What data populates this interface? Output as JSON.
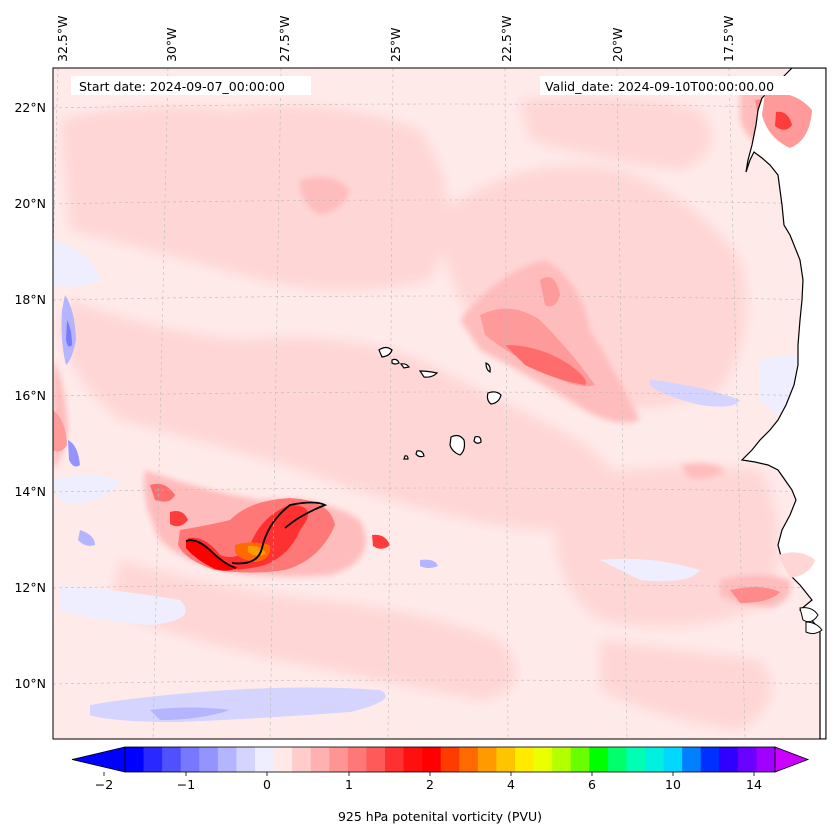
{
  "header": {
    "start_date": "Start date: 2024-09-07_00:00:00",
    "valid_date": "Valid_date: 2024-09-10T00:00:00.00"
  },
  "lon_ticks": [
    "32.5°W",
    "30°W",
    "27.5°W",
    "25°W",
    "22.5°W",
    "20°W",
    "17.5°W"
  ],
  "lat_ticks": [
    "22°N",
    "20°N",
    "18°N",
    "16°N",
    "14°N",
    "12°N",
    "10°N"
  ],
  "colorbar": {
    "label": "925 hPa potenital vorticity (PVU)",
    "tick_labels": [
      "−2",
      "−1",
      "0",
      "1",
      "2",
      "4",
      "6",
      "10",
      "14"
    ],
    "colors": [
      "#0000ff",
      "#2828ff",
      "#5050ff",
      "#7878ff",
      "#9494ff",
      "#b4b4ff",
      "#d4d4ff",
      "#eeeeff",
      "#ffe8e8",
      "#ffcccc",
      "#ffb0b0",
      "#ff9494",
      "#ff7878",
      "#ff5a5a",
      "#ff3030",
      "#ff1010",
      "#ff0000",
      "#ff3c00",
      "#ff6a00",
      "#ff9a00",
      "#ffc400",
      "#ffea00",
      "#eaff00",
      "#b4ff00",
      "#6aff00",
      "#00ff00",
      "#00ff6a",
      "#00ffb4",
      "#00f0e0",
      "#00d8ff",
      "#0080ff",
      "#0030ff",
      "#3000ff",
      "#6a00ff",
      "#a000ff"
    ],
    "under_color": "#0000ff",
    "over_color": "#cc00ff"
  },
  "colors": {
    "coastline": "#000000",
    "land": "#ffffff",
    "grid": "#bbbbbb"
  }
}
